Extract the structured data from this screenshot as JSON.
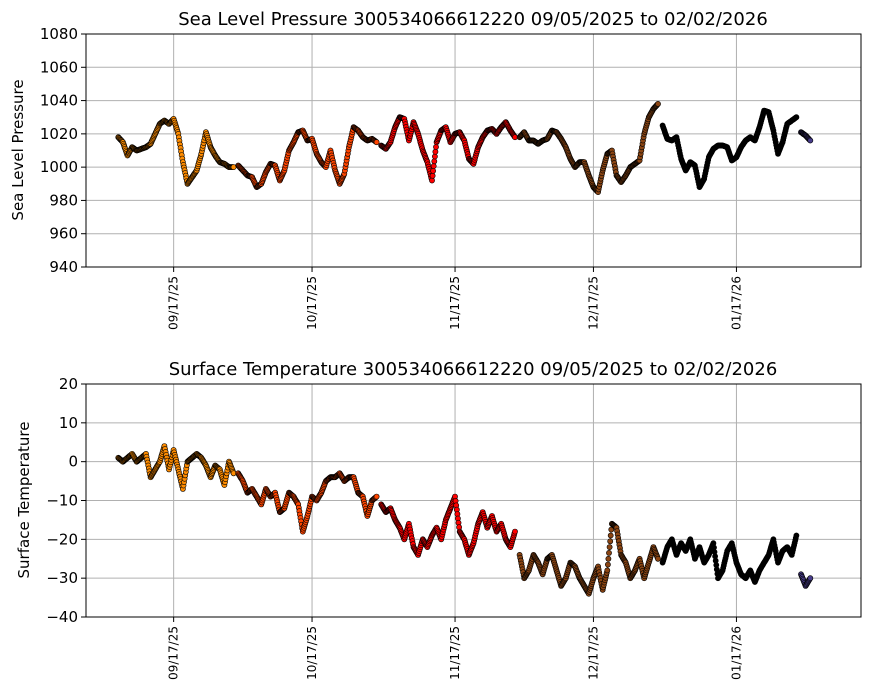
{
  "chart_data": [
    {
      "type": "scatter",
      "title": "Sea Level Pressure 300534066612220  09/05/2025 to 02/02/2026",
      "ylabel": "Sea Level Pressure",
      "xlabel": "",
      "ylim": [
        940,
        1080
      ],
      "yticks": [
        940,
        960,
        980,
        1000,
        1020,
        1040,
        1060,
        1080
      ],
      "xlim": [
        "2025-08-29",
        "2026-02-13"
      ],
      "xticks": [
        "2025-09-17",
        "2025-10-17",
        "2025-11-17",
        "2025-12-17",
        "2026-01-17"
      ],
      "xtick_labels": [
        "09/17/25",
        "10/17/25",
        "11/17/25",
        "12/17/25",
        "01/17/26"
      ],
      "grid": true,
      "series": [
        {
          "color": "#ff8c00",
          "x": [
            "2025-09-05",
            "2025-09-06",
            "2025-09-07",
            "2025-09-08",
            "2025-09-09",
            "2025-09-10",
            "2025-09-11",
            "2025-09-12",
            "2025-09-13",
            "2025-09-14",
            "2025-09-15",
            "2025-09-16",
            "2025-09-17",
            "2025-09-18",
            "2025-09-19",
            "2025-09-20",
            "2025-09-21",
            "2025-09-22",
            "2025-09-23",
            "2025-09-24",
            "2025-09-25",
            "2025-09-26",
            "2025-09-27",
            "2025-09-28",
            "2025-09-29",
            "2025-09-30"
          ],
          "y": [
            1018,
            1015,
            1007,
            1012,
            1010,
            1011,
            1012,
            1014,
            1020,
            1026,
            1028,
            1026,
            1029,
            1020,
            1003,
            990,
            994,
            998,
            1008,
            1021,
            1012,
            1007,
            1003,
            1002,
            1000,
            1000
          ]
        },
        {
          "color": "#ff4500",
          "x": [
            "2025-10-01",
            "2025-10-02",
            "2025-10-03",
            "2025-10-04",
            "2025-10-05",
            "2025-10-06",
            "2025-10-07",
            "2025-10-08",
            "2025-10-09",
            "2025-10-10",
            "2025-10-11",
            "2025-10-12",
            "2025-10-13",
            "2025-10-14",
            "2025-10-15",
            "2025-10-16",
            "2025-10-17",
            "2025-10-18",
            "2025-10-19",
            "2025-10-20",
            "2025-10-21",
            "2025-10-22",
            "2025-10-23",
            "2025-10-24",
            "2025-10-25",
            "2025-10-26",
            "2025-10-27",
            "2025-10-28",
            "2025-10-29",
            "2025-10-30",
            "2025-10-31"
          ],
          "y": [
            1001,
            998,
            995,
            994,
            988,
            990,
            997,
            1002,
            1001,
            992,
            998,
            1010,
            1015,
            1021,
            1022,
            1016,
            1017,
            1008,
            1003,
            1000,
            1010,
            998,
            990,
            996,
            1012,
            1024,
            1022,
            1018,
            1016,
            1017,
            1015
          ]
        },
        {
          "color": "#ff0000",
          "x": [
            "2025-11-01",
            "2025-11-02",
            "2025-11-03",
            "2025-11-04",
            "2025-11-05",
            "2025-11-06",
            "2025-11-07",
            "2025-11-08",
            "2025-11-09",
            "2025-11-10",
            "2025-11-11",
            "2025-11-12",
            "2025-11-13",
            "2025-11-14",
            "2025-11-15",
            "2025-11-16",
            "2025-11-17",
            "2025-11-18",
            "2025-11-19",
            "2025-11-20",
            "2025-11-21",
            "2025-11-22",
            "2025-11-23",
            "2025-11-24",
            "2025-11-25",
            "2025-11-26",
            "2025-11-27",
            "2025-11-28",
            "2025-11-29",
            "2025-11-30"
          ],
          "y": [
            1013,
            1011,
            1015,
            1024,
            1030,
            1029,
            1016,
            1027,
            1020,
            1010,
            1003,
            992,
            1015,
            1022,
            1024,
            1015,
            1020,
            1021,
            1016,
            1005,
            1002,
            1012,
            1018,
            1022,
            1023,
            1020,
            1024,
            1027,
            1022,
            1018
          ]
        },
        {
          "color": "#8b4513",
          "x": [
            "2025-12-01",
            "2025-12-02",
            "2025-12-03",
            "2025-12-04",
            "2025-12-05",
            "2025-12-06",
            "2025-12-07",
            "2025-12-08",
            "2025-12-09",
            "2025-12-10",
            "2025-12-11",
            "2025-12-12",
            "2025-12-13",
            "2025-12-14",
            "2025-12-15",
            "2025-12-16",
            "2025-12-17",
            "2025-12-18",
            "2025-12-19",
            "2025-12-20",
            "2025-12-21",
            "2025-12-22",
            "2025-12-23",
            "2025-12-24",
            "2025-12-25",
            "2025-12-26",
            "2025-12-27",
            "2025-12-28",
            "2025-12-29",
            "2025-12-30",
            "2025-12-31"
          ],
          "y": [
            1018,
            1021,
            1016,
            1016,
            1014,
            1016,
            1017,
            1022,
            1021,
            1017,
            1012,
            1005,
            1000,
            1003,
            1003,
            995,
            988,
            985,
            998,
            1008,
            1010,
            995,
            991,
            995,
            1000,
            1002,
            1004,
            1020,
            1030,
            1035,
            1038
          ]
        },
        {
          "color": "#000000",
          "x": [
            "2026-01-01",
            "2026-01-02",
            "2026-01-03",
            "2026-01-04",
            "2026-01-05",
            "2026-01-06",
            "2026-01-07",
            "2026-01-08",
            "2026-01-09",
            "2026-01-10",
            "2026-01-11",
            "2026-01-12",
            "2026-01-13",
            "2026-01-14",
            "2026-01-15",
            "2026-01-16",
            "2026-01-17",
            "2026-01-18",
            "2026-01-19",
            "2026-01-20",
            "2026-01-21",
            "2026-01-22",
            "2026-01-23",
            "2026-01-24",
            "2026-01-25",
            "2026-01-26",
            "2026-01-27",
            "2026-01-28",
            "2026-01-29",
            "2026-01-30"
          ],
          "y": [
            1025,
            1017,
            1016,
            1018,
            1005,
            998,
            1003,
            1001,
            988,
            993,
            1006,
            1011,
            1013,
            1013,
            1012,
            1004,
            1006,
            1012,
            1016,
            1018,
            1016,
            1024,
            1034,
            1033,
            1022,
            1008,
            1015,
            1026,
            1028,
            1030
          ]
        },
        {
          "color": "#483d8b",
          "x": [
            "2026-01-31",
            "2026-02-01",
            "2026-02-02"
          ],
          "y": [
            1021,
            1019,
            1016
          ]
        }
      ]
    },
    {
      "type": "scatter",
      "title": "Surface Temperature 300534066612220  09/05/2025 to 02/02/2026",
      "ylabel": "Surface Temperature",
      "xlabel": "",
      "ylim": [
        -40,
        20
      ],
      "yticks": [
        -40,
        -30,
        -20,
        -10,
        0,
        10,
        20
      ],
      "xlim": [
        "2025-08-29",
        "2026-02-13"
      ],
      "xticks": [
        "2025-09-17",
        "2025-10-17",
        "2025-11-17",
        "2025-12-17",
        "2026-01-17"
      ],
      "xtick_labels": [
        "09/17/25",
        "10/17/25",
        "11/17/25",
        "12/17/25",
        "01/17/26"
      ],
      "grid": true,
      "series": [
        {
          "color": "#ff8c00",
          "x": [
            "2025-09-05",
            "2025-09-06",
            "2025-09-07",
            "2025-09-08",
            "2025-09-09",
            "2025-09-10",
            "2025-09-11",
            "2025-09-12",
            "2025-09-13",
            "2025-09-14",
            "2025-09-15",
            "2025-09-16",
            "2025-09-17",
            "2025-09-18",
            "2025-09-19",
            "2025-09-20",
            "2025-09-21",
            "2025-09-22",
            "2025-09-23",
            "2025-09-24",
            "2025-09-25",
            "2025-09-26",
            "2025-09-27",
            "2025-09-28",
            "2025-09-29",
            "2025-09-30"
          ],
          "y": [
            1,
            0,
            1,
            2,
            0,
            1,
            2,
            -4,
            -2,
            0,
            4,
            -2,
            3,
            -2,
            -7,
            0,
            1,
            2,
            1,
            -1,
            -4,
            -1,
            -2,
            -6,
            0,
            -3
          ]
        },
        {
          "color": "#ff4500",
          "x": [
            "2025-10-01",
            "2025-10-02",
            "2025-10-03",
            "2025-10-04",
            "2025-10-05",
            "2025-10-06",
            "2025-10-07",
            "2025-10-08",
            "2025-10-09",
            "2025-10-10",
            "2025-10-11",
            "2025-10-12",
            "2025-10-13",
            "2025-10-14",
            "2025-10-15",
            "2025-10-16",
            "2025-10-17",
            "2025-10-18",
            "2025-10-19",
            "2025-10-20",
            "2025-10-21",
            "2025-10-22",
            "2025-10-23",
            "2025-10-24",
            "2025-10-25",
            "2025-10-26",
            "2025-10-27",
            "2025-10-28",
            "2025-10-29",
            "2025-10-30",
            "2025-10-31"
          ],
          "y": [
            -3,
            -5,
            -8,
            -7,
            -9,
            -11,
            -7,
            -9,
            -8,
            -13,
            -12,
            -8,
            -9,
            -11,
            -18,
            -14,
            -9,
            -10,
            -8,
            -5,
            -4,
            -4,
            -3,
            -5,
            -4,
            -4,
            -8,
            -9,
            -14,
            -10,
            -9
          ]
        },
        {
          "color": "#ff0000",
          "x": [
            "2025-11-01",
            "2025-11-02",
            "2025-11-03",
            "2025-11-04",
            "2025-11-05",
            "2025-11-06",
            "2025-11-07",
            "2025-11-08",
            "2025-11-09",
            "2025-11-10",
            "2025-11-11",
            "2025-11-12",
            "2025-11-13",
            "2025-11-14",
            "2025-11-15",
            "2025-11-16",
            "2025-11-17",
            "2025-11-18",
            "2025-11-19",
            "2025-11-20",
            "2025-11-21",
            "2025-11-22",
            "2025-11-23",
            "2025-11-24",
            "2025-11-25",
            "2025-11-26",
            "2025-11-27",
            "2025-11-28",
            "2025-11-29",
            "2025-11-30"
          ],
          "y": [
            -11,
            -13,
            -12,
            -15,
            -17,
            -20,
            -16,
            -22,
            -24,
            -20,
            -22,
            -19,
            -17,
            -20,
            -15,
            -12,
            -9,
            -18,
            -20,
            -24,
            -21,
            -16,
            -13,
            -17,
            -14,
            -18,
            -16,
            -20,
            -22,
            -18
          ]
        },
        {
          "color": "#8b4513",
          "x": [
            "2025-12-01",
            "2025-12-02",
            "2025-12-03",
            "2025-12-04",
            "2025-12-05",
            "2025-12-06",
            "2025-12-07",
            "2025-12-08",
            "2025-12-09",
            "2025-12-10",
            "2025-12-11",
            "2025-12-12",
            "2025-12-13",
            "2025-12-14",
            "2025-12-15",
            "2025-12-16",
            "2025-12-17",
            "2025-12-18",
            "2025-12-19",
            "2025-12-20",
            "2025-12-21",
            "2025-12-22",
            "2025-12-23",
            "2025-12-24",
            "2025-12-25",
            "2025-12-26",
            "2025-12-27",
            "2025-12-28",
            "2025-12-29",
            "2025-12-30",
            "2025-12-31"
          ],
          "y": [
            -24,
            -30,
            -28,
            -24,
            -26,
            -29,
            -25,
            -24,
            -28,
            -32,
            -30,
            -26,
            -27,
            -30,
            -32,
            -34,
            -30,
            -27,
            -33,
            -28,
            -16,
            -17,
            -24,
            -26,
            -30,
            -28,
            -25,
            -30,
            -26,
            -22,
            -25
          ]
        },
        {
          "color": "#000000",
          "x": [
            "2026-01-01",
            "2026-01-02",
            "2026-01-03",
            "2026-01-04",
            "2026-01-05",
            "2026-01-06",
            "2026-01-07",
            "2026-01-08",
            "2026-01-09",
            "2026-01-10",
            "2026-01-11",
            "2026-01-12",
            "2026-01-13",
            "2026-01-14",
            "2026-01-15",
            "2026-01-16",
            "2026-01-17",
            "2026-01-18",
            "2026-01-19",
            "2026-01-20",
            "2026-01-21",
            "2026-01-22",
            "2026-01-23",
            "2026-01-24",
            "2026-01-25",
            "2026-01-26",
            "2026-01-27",
            "2026-01-28",
            "2026-01-29",
            "2026-01-30"
          ],
          "y": [
            -26,
            -22,
            -20,
            -24,
            -21,
            -23,
            -20,
            -25,
            -22,
            -26,
            -24,
            -21,
            -30,
            -28,
            -23,
            -21,
            -26,
            -29,
            -30,
            -28,
            -31,
            -28,
            -26,
            -24,
            -20,
            -26,
            -23,
            -22,
            -24,
            -19
          ]
        },
        {
          "color": "#483d8b",
          "x": [
            "2026-01-31",
            "2026-02-01",
            "2026-02-02"
          ],
          "y": [
            -29,
            -32,
            -30
          ]
        }
      ]
    }
  ]
}
